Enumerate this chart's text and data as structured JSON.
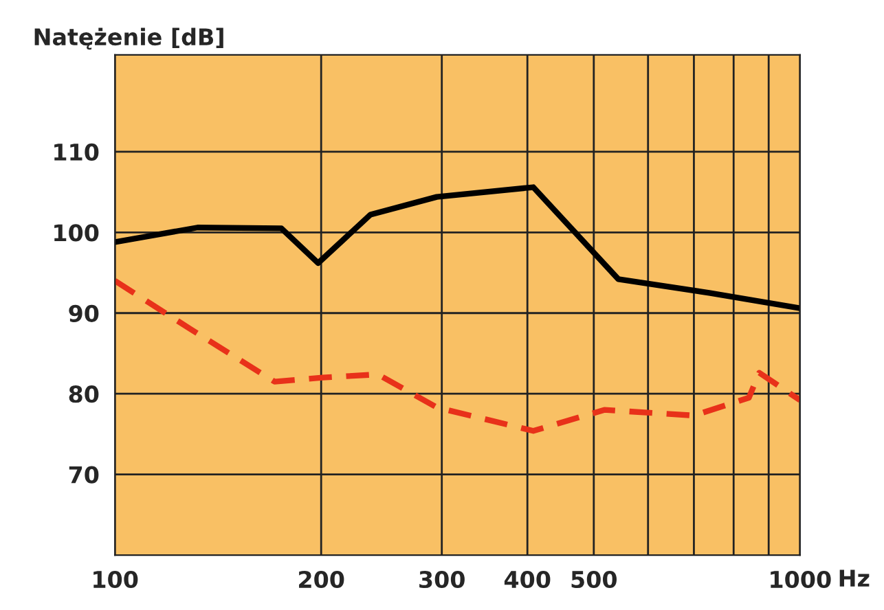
{
  "chart_data": {
    "type": "line",
    "ylabel": "Natężenie [dB]",
    "xlabel": "Hz",
    "log": "x",
    "grid": true,
    "legend": false,
    "xlim": [
      100,
      1000
    ],
    "ylim": [
      60,
      122
    ],
    "xticks": [
      100,
      200,
      300,
      400,
      500,
      {
        "value": 600,
        "label": null
      },
      {
        "value": 700,
        "label": null
      },
      {
        "value": 800,
        "label": null
      },
      {
        "value": 900,
        "label": null
      },
      1000
    ],
    "yticks": [
      70,
      80,
      90,
      100,
      110
    ],
    "series": [
      {
        "color": "#000000",
        "line_style": "solid",
        "x": [
          100,
          132,
          175,
          198,
          236,
          295,
          408,
          543,
          737,
          1000
        ],
        "values": [
          98.8,
          100.6,
          100.5,
          96.2,
          102.2,
          104.4,
          105.6,
          94.2,
          92.5,
          90.6
        ]
      },
      {
        "color": "#e8311a",
        "line_style": "dashed",
        "x": [
          100,
          129,
          171,
          201,
          242,
          295,
          408,
          518,
          700,
          842,
          872,
          1000
        ],
        "values": [
          94,
          88,
          81.5,
          82,
          82.4,
          78.3,
          75.4,
          78,
          77.3,
          79.5,
          82.6,
          79.2
        ]
      }
    ]
  }
}
